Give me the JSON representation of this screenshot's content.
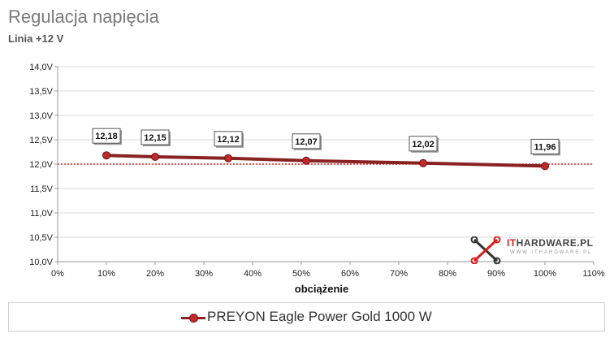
{
  "chart_data": {
    "type": "line",
    "title": "Regulacja napięcia",
    "subtitle": "Linia +12 V",
    "xlabel": "obciążenie",
    "ylabel": "",
    "xlim": [
      0,
      110
    ],
    "ylim": [
      10.0,
      14.0
    ],
    "x_ticks": [
      "0%",
      "10%",
      "20%",
      "30%",
      "40%",
      "50%",
      "60%",
      "70%",
      "80%",
      "90%",
      "100%",
      "110%"
    ],
    "y_ticks": [
      "10,0V",
      "10,5V",
      "11,0V",
      "11,5V",
      "12,0V",
      "12,5V",
      "13,0V",
      "13,5V",
      "14,0V"
    ],
    "reference_line": 12.0,
    "grid": "horizontal",
    "legend": "bottom",
    "series": [
      {
        "name": "PREYON Eagle Power Gold 1000 W",
        "x": [
          10,
          20,
          35,
          51,
          75,
          100
        ],
        "values": [
          12.18,
          12.15,
          12.12,
          12.07,
          12.02,
          11.96
        ],
        "labels": [
          "12,18",
          "12,15",
          "12,12",
          "12,07",
          "12,02",
          "11,96"
        ]
      }
    ]
  },
  "logo": {
    "brand_prefix": "IT",
    "brand_suffix": "HARDWARE.PL",
    "tagline": "WWW.ITHARDWARE.PL"
  },
  "colors": {
    "series": "#8a2222",
    "marker": "#c22a2a",
    "reference": "#cc0000",
    "grid": "#d9d9d9",
    "axis": "#999999"
  }
}
